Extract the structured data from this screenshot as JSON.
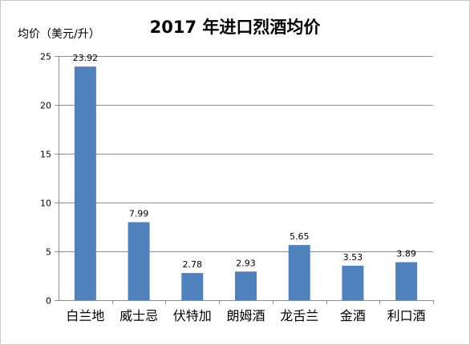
{
  "chart_data": {
    "type": "bar",
    "title": "2017 年进口烈酒均价",
    "ylabel": "均价（美元/升）",
    "xlabel": "",
    "categories": [
      "白兰地",
      "威士忌",
      "伏特加",
      "朗姆酒",
      "龙舌兰",
      "金酒",
      "利口酒"
    ],
    "values": [
      23.92,
      7.99,
      2.78,
      2.93,
      5.65,
      3.53,
      3.89
    ],
    "value_labels": [
      "23.92",
      "7.99",
      "2.78",
      "2.93",
      "5.65",
      "3.53",
      "3.89"
    ],
    "ylim": [
      0,
      25
    ],
    "yticks": [
      0,
      5,
      10,
      15,
      20,
      25
    ],
    "grid": true,
    "legend": "none",
    "bar_color": "#4f81bd",
    "grid_color": "#8c8c8c"
  }
}
